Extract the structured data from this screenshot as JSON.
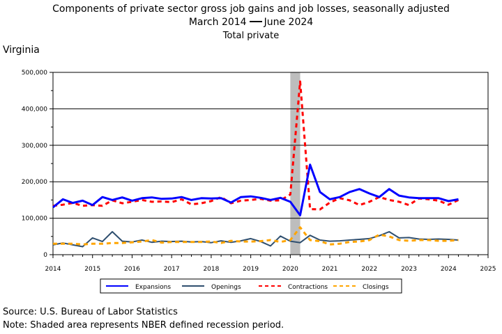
{
  "title": "Components of private sector gross job gains and job losses, seasonally adjusted",
  "period_start": "March 2014",
  "period_end": "June 2024",
  "subtitle2": "Total private",
  "region": "Virginia",
  "source": "Source: U.S. Bureau of Labor Statistics",
  "note": "Note: Shaded area represents NBER defined recession period.",
  "chart_data": {
    "type": "line",
    "xlim": [
      2014,
      2025
    ],
    "ylim": [
      0,
      500000
    ],
    "x_ticks": [
      "2014",
      "2015",
      "2016",
      "2017",
      "2018",
      "2019",
      "2020",
      "2021",
      "2022",
      "2023",
      "2024",
      "2025"
    ],
    "y_ticks": [
      "0",
      "100,000",
      "200,000",
      "300,000",
      "400,000",
      "500,000"
    ],
    "grid": "horizontal",
    "legend_position": "bottom",
    "recession_shading": [
      2020.0,
      2020.25
    ],
    "x": [
      2014.0,
      2014.25,
      2014.5,
      2014.75,
      2015.0,
      2015.25,
      2015.5,
      2015.75,
      2016.0,
      2016.25,
      2016.5,
      2016.75,
      2017.0,
      2017.25,
      2017.5,
      2017.75,
      2018.0,
      2018.25,
      2018.5,
      2018.75,
      2019.0,
      2019.25,
      2019.5,
      2019.75,
      2020.0,
      2020.25,
      2020.5,
      2020.75,
      2021.0,
      2021.25,
      2021.5,
      2021.75,
      2022.0,
      2022.25,
      2022.5,
      2022.75,
      2023.0,
      2023.25,
      2023.5,
      2023.75,
      2024.0,
      2024.25
    ],
    "series": [
      {
        "name": "Expansions",
        "color": "#0000ff",
        "dash": "solid",
        "width": 3,
        "values": [
          130000,
          152000,
          142000,
          148000,
          136000,
          158000,
          150000,
          157000,
          148000,
          155000,
          157000,
          153000,
          154000,
          158000,
          150000,
          155000,
          154000,
          155000,
          143000,
          158000,
          160000,
          156000,
          150000,
          156000,
          145000,
          108000,
          247000,
          172000,
          152000,
          158000,
          172000,
          180000,
          168000,
          158000,
          180000,
          162000,
          157000,
          155000,
          155000,
          155000,
          147000,
          152000
        ]
      },
      {
        "name": "Openings",
        "color": "#2f4f6f",
        "dash": "solid",
        "width": 2,
        "values": [
          27000,
          32000,
          27000,
          22000,
          46000,
          36000,
          63000,
          37000,
          35000,
          40000,
          34000,
          37000,
          36000,
          37000,
          35000,
          36000,
          33000,
          38000,
          34000,
          38000,
          44000,
          36000,
          24000,
          51000,
          37000,
          33000,
          53000,
          40000,
          37000,
          38000,
          40000,
          42000,
          44000,
          52000,
          63000,
          46000,
          47000,
          43000,
          42000,
          43000,
          42000,
          40000
        ]
      },
      {
        "name": "Contractions",
        "color": "#ff0000",
        "dash": "6,5",
        "width": 3,
        "values": [
          134000,
          137000,
          142000,
          134000,
          136000,
          134000,
          149000,
          141000,
          145000,
          150000,
          145000,
          146000,
          144000,
          152000,
          138000,
          141000,
          147000,
          158000,
          141000,
          148000,
          150000,
          153000,
          148000,
          149000,
          165000,
          475000,
          125000,
          124000,
          143000,
          155000,
          149000,
          136000,
          145000,
          158000,
          150000,
          145000,
          136000,
          154000,
          152000,
          148000,
          137000,
          150000
        ]
      },
      {
        "name": "Closings",
        "color": "#ffa500",
        "dash": "6,5",
        "width": 3,
        "values": [
          30000,
          30000,
          30000,
          28000,
          30000,
          30000,
          32000,
          32000,
          34000,
          36000,
          40000,
          33000,
          35000,
          35000,
          35000,
          35000,
          36000,
          32000,
          38000,
          36000,
          36000,
          37000,
          40000,
          35000,
          40000,
          75000,
          40000,
          37000,
          28000,
          30000,
          35000,
          36000,
          40000,
          55000,
          50000,
          40000,
          38000,
          40000,
          40000,
          38000,
          38000,
          40000
        ]
      }
    ]
  }
}
